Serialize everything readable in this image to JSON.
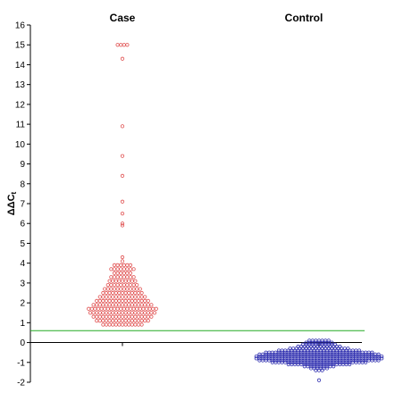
{
  "chart_data": {
    "type": "scatter",
    "subtype": "dot-plot",
    "ylabel": "ΔΔC",
    "ylabel_sub": "t",
    "ylim": [
      -2,
      16
    ],
    "yticks": [
      -2,
      -1,
      0,
      1,
      2,
      3,
      4,
      5,
      6,
      7,
      8,
      9,
      10,
      11,
      12,
      13,
      14,
      15,
      16
    ],
    "reference_line": {
      "y": 0.6,
      "color": "#22aa22"
    },
    "grid": false,
    "groups": [
      {
        "label": "Case",
        "color": "#e05050",
        "outliers": [
          15,
          15,
          15,
          15,
          14.3,
          10.9,
          9.4,
          8.4,
          7.1,
          6.5,
          6.0,
          5.9,
          4.3,
          4.1
        ],
        "bins": [
          {
            "y": 3.9,
            "n": 6
          },
          {
            "y": 3.7,
            "n": 8
          },
          {
            "y": 3.5,
            "n": 6
          },
          {
            "y": 3.3,
            "n": 8
          },
          {
            "y": 3.1,
            "n": 9
          },
          {
            "y": 2.9,
            "n": 10
          },
          {
            "y": 2.7,
            "n": 12
          },
          {
            "y": 2.5,
            "n": 13
          },
          {
            "y": 2.3,
            "n": 15
          },
          {
            "y": 2.1,
            "n": 17
          },
          {
            "y": 1.9,
            "n": 19
          },
          {
            "y": 1.7,
            "n": 22
          },
          {
            "y": 1.5,
            "n": 21
          },
          {
            "y": 1.3,
            "n": 19
          },
          {
            "y": 1.1,
            "n": 17
          },
          {
            "y": 0.9,
            "n": 13
          }
        ]
      },
      {
        "label": "Control",
        "color": "#3030b0",
        "outliers": [
          -1.9
        ],
        "bins": [
          {
            "y": 0.1,
            "n": 7
          },
          {
            "y": 0.0,
            "n": 9
          },
          {
            "y": -0.1,
            "n": 11
          },
          {
            "y": -0.2,
            "n": 14
          },
          {
            "y": -0.3,
            "n": 19
          },
          {
            "y": -0.4,
            "n": 26
          },
          {
            "y": -0.5,
            "n": 34
          },
          {
            "y": -0.6,
            "n": 38
          },
          {
            "y": -0.7,
            "n": 40
          },
          {
            "y": -0.8,
            "n": 40
          },
          {
            "y": -0.9,
            "n": 38
          },
          {
            "y": -1.0,
            "n": 30
          },
          {
            "y": -1.1,
            "n": 20
          },
          {
            "y": -1.2,
            "n": 10
          },
          {
            "y": -1.3,
            "n": 6
          },
          {
            "y": -1.4,
            "n": 3
          }
        ]
      }
    ]
  }
}
